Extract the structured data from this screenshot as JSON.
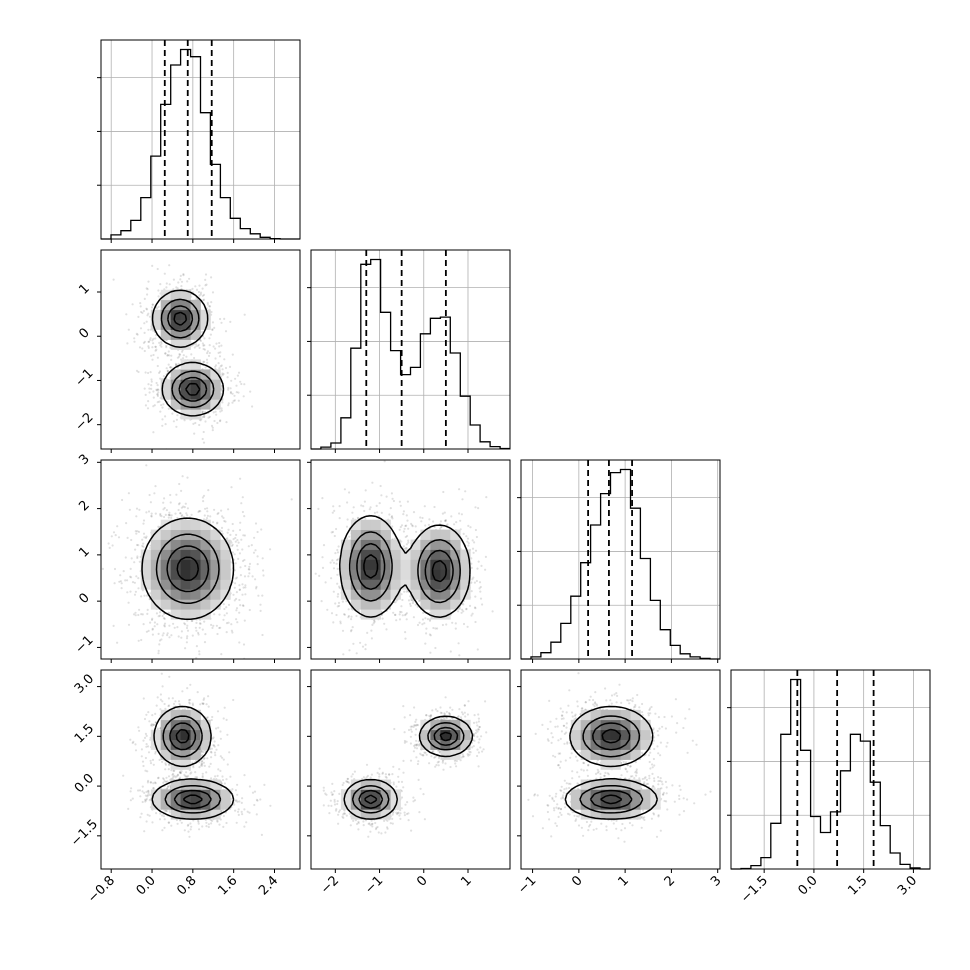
{
  "chart_data": {
    "type": "corner",
    "grid": true,
    "parameters": [
      {
        "ticks": [
          "−0.8",
          "0.0",
          "0.8",
          "1.6",
          "2.4"
        ],
        "tick_values": [
          -0.8,
          0.0,
          0.8,
          1.6,
          2.4
        ],
        "range": [
          -1.0,
          2.9
        ]
      },
      {
        "ticks": [
          "−2",
          "−1",
          "0",
          "1"
        ],
        "tick_values": [
          -2,
          -1,
          0,
          1
        ],
        "range": [
          -2.55,
          1.95
        ]
      },
      {
        "ticks": [
          "−1",
          "0",
          "1",
          "2",
          "3"
        ],
        "tick_values": [
          -1,
          0,
          1,
          2,
          3
        ],
        "range": [
          -1.25,
          3.05
        ]
      },
      {
        "ticks": [
          "−1.5",
          "0.0",
          "1.5",
          "3.0"
        ],
        "tick_values": [
          -1.5,
          0.0,
          1.5,
          3.0
        ],
        "range": [
          -2.5,
          3.5
        ]
      }
    ],
    "diagonal": [
      {
        "param": 0,
        "bin_edges_start": -1.0,
        "bin_width": 0.195,
        "counts": [
          0,
          20,
          40,
          90,
          200,
          400,
          650,
          840,
          915,
          880,
          610,
          360,
          200,
          100,
          50,
          25,
          8,
          2,
          0,
          0
        ],
        "quantiles": [
          0.25,
          0.7,
          1.17
        ]
      },
      {
        "param": 1,
        "bin_edges_start": -2.55,
        "bin_width": 0.225,
        "counts": [
          0,
          8,
          25,
          130,
          420,
          770,
          790,
          570,
          410,
          310,
          340,
          480,
          545,
          550,
          400,
          220,
          100,
          30,
          10,
          2
        ],
        "quantiles": [
          -1.3,
          -0.5,
          0.5
        ]
      },
      {
        "param": 2,
        "bin_edges_start": -1.25,
        "bin_width": 0.215,
        "counts": [
          0,
          10,
          30,
          80,
          170,
          300,
          460,
          640,
          790,
          890,
          905,
          720,
          480,
          280,
          140,
          65,
          25,
          10,
          3,
          0
        ],
        "quantiles": [
          0.2,
          0.65,
          1.15
        ]
      },
      {
        "param": 3,
        "bin_edges_start": -2.5,
        "bin_width": 0.3,
        "counts": [
          0,
          2,
          15,
          50,
          200,
          590,
          830,
          520,
          230,
          160,
          250,
          430,
          590,
          560,
          380,
          190,
          70,
          20,
          5,
          0
        ],
        "quantiles": [
          -0.5,
          0.7,
          1.8
        ]
      }
    ],
    "pairs": [
      {
        "x": 0,
        "y": 1,
        "modes": [
          {
            "mx": 0.55,
            "my": 0.4,
            "sx": 0.27,
            "sy": 0.32
          },
          {
            "mx": 0.8,
            "my": -1.2,
            "sx": 0.3,
            "sy": 0.3
          }
        ]
      },
      {
        "x": 0,
        "y": 2,
        "modes": [
          {
            "mx": 0.7,
            "my": 0.7,
            "sx": 0.45,
            "sy": 0.55
          }
        ]
      },
      {
        "x": 1,
        "y": 2,
        "modes": [
          {
            "mx": -1.2,
            "my": 0.75,
            "sx": 0.35,
            "sy": 0.55
          },
          {
            "mx": 0.35,
            "my": 0.65,
            "sx": 0.35,
            "sy": 0.5
          }
        ]
      },
      {
        "x": 0,
        "y": 3,
        "modes": [
          {
            "mx": 0.6,
            "my": 1.5,
            "sx": 0.28,
            "sy": 0.45
          },
          {
            "mx": 0.8,
            "my": -0.4,
            "sx": 0.4,
            "sy": 0.3
          }
        ]
      },
      {
        "x": 1,
        "y": 3,
        "modes": [
          {
            "mx": -1.2,
            "my": -0.4,
            "sx": 0.3,
            "sy": 0.3
          },
          {
            "mx": 0.5,
            "my": 1.5,
            "sx": 0.3,
            "sy": 0.3
          }
        ]
      },
      {
        "x": 2,
        "y": 3,
        "modes": [
          {
            "mx": 0.7,
            "my": 1.5,
            "sx": 0.45,
            "sy": 0.45
          },
          {
            "mx": 0.7,
            "my": -0.4,
            "sx": 0.5,
            "sy": 0.3
          }
        ]
      }
    ]
  }
}
